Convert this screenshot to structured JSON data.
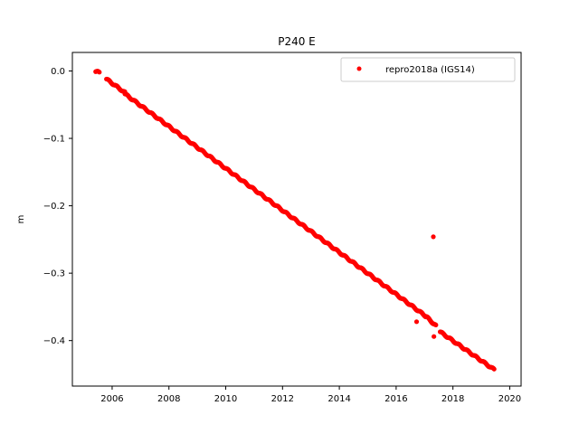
{
  "chart_data": {
    "type": "scatter",
    "title": "P240 E",
    "xlabel": "",
    "ylabel": "m",
    "xlim": [
      2004.6,
      2020.4
    ],
    "ylim": [
      -0.4675,
      0.0275
    ],
    "xticks": [
      2006,
      2008,
      2010,
      2012,
      2014,
      2016,
      2018,
      2020
    ],
    "yticks": [
      0.0,
      -0.1,
      -0.2,
      -0.3,
      -0.4
    ],
    "ytick_labels": [
      "0.0",
      "−0.1",
      "−0.2",
      "−0.3",
      "−0.4"
    ],
    "grid": false,
    "legend_position": "top-right",
    "marker_color": "#ff0000",
    "series": [
      {
        "name": "repro2018a (IGS14)",
        "color": "#ff0000",
        "segments": [
          {
            "x_start": 2005.42,
            "x_end": 2005.55,
            "y_start": -0.001,
            "y_end": -0.002
          },
          {
            "x_start": 2005.8,
            "x_end": 2006.45,
            "y_start": -0.012,
            "y_end": -0.032
          },
          {
            "x_start": 2006.45,
            "x_end": 2017.05,
            "y_start": -0.034,
            "y_end": -0.364
          },
          {
            "x_start": 2017.05,
            "x_end": 2017.4,
            "y_start": -0.364,
            "y_end": -0.378
          },
          {
            "x_start": 2017.55,
            "x_end": 2019.45,
            "y_start": -0.387,
            "y_end": -0.443
          }
        ],
        "outliers": [
          {
            "x": 2017.31,
            "y": -0.246
          },
          {
            "x": 2016.72,
            "y": -0.372
          },
          {
            "x": 2017.33,
            "y": -0.394
          }
        ]
      }
    ]
  }
}
